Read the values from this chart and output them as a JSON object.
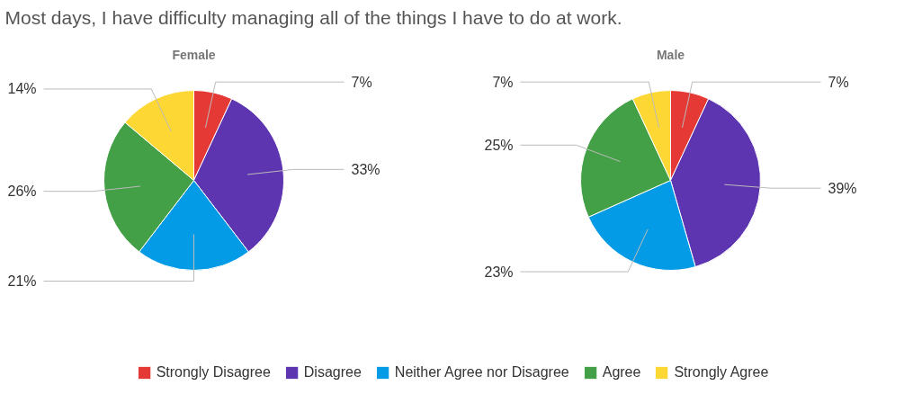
{
  "chart_data": {
    "type": "pie",
    "title": "Most days, I have difficulty managing all of the things I have to do at work.",
    "categories": [
      "Strongly Disagree",
      "Disagree",
      "Neither Agree nor Disagree",
      "Agree",
      "Strongly Agree"
    ],
    "colors": [
      "#e53935",
      "#5e35b1",
      "#039be5",
      "#43a047",
      "#fdd835"
    ],
    "legend": "bottom",
    "series": [
      {
        "name": "Female",
        "values": [
          7,
          33,
          21,
          26,
          14
        ],
        "value_labels": [
          "7%",
          "33%",
          "21%",
          "26%",
          "14%"
        ]
      },
      {
        "name": "Male",
        "values": [
          7,
          39,
          23,
          25,
          7
        ],
        "value_labels": [
          "7%",
          "39%",
          "23%",
          "25%",
          "7%"
        ]
      }
    ]
  }
}
